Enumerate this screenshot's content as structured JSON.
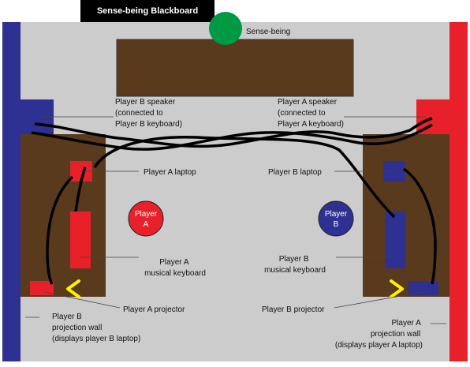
{
  "header": {
    "title": "Sense-being Blackboard"
  },
  "sense_being": {
    "label": "Sense-being"
  },
  "player_a": {
    "badge_line1": "Player",
    "badge_line2": "A",
    "speaker": [
      "Player A speaker",
      "(connected to",
      "Player A keyboard)"
    ],
    "laptop": "Player A laptop",
    "keyboard": [
      "Player A",
      "musical keyboard"
    ],
    "projector": "Player A projector",
    "projection_wall": [
      "Player A",
      "projection wall",
      "(displays player A laptop)"
    ]
  },
  "player_b": {
    "badge_line1": "Player",
    "badge_line2": "B",
    "speaker": [
      "Player B speaker",
      "(connected to",
      "Player B keyboard)"
    ],
    "laptop": "Player B laptop",
    "keyboard": [
      "Player B",
      "musical keyboard"
    ],
    "projector": "Player B projector",
    "projection_wall": [
      "Player B",
      "projection wall",
      "(displays player B laptop)"
    ]
  },
  "colors": {
    "room": "#cccccc",
    "table": "#5a3a1c",
    "red": "#e8202a",
    "blue": "#2e3192",
    "green": "#009a44",
    "arrow": "#fff200",
    "header_bg": "#000000"
  }
}
